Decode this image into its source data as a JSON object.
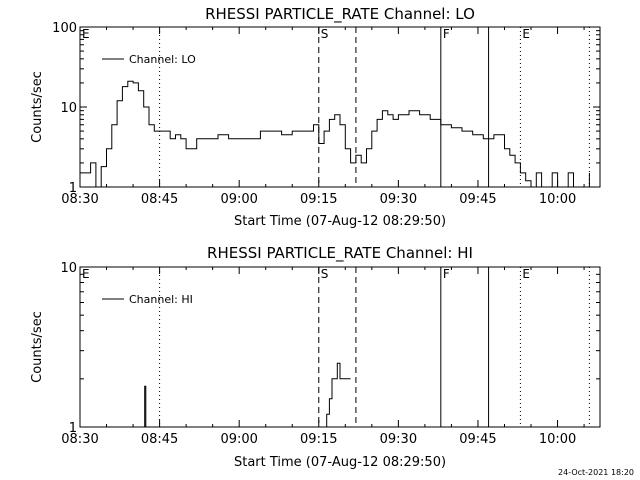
{
  "footer": {
    "timestamp": "24-Oct-2021 18:20"
  },
  "chart_data": [
    {
      "type": "line",
      "title": "RHESSI PARTICLE_RATE Channel: LO",
      "xlabel": "Start Time (07-Aug-12 08:29:50)",
      "ylabel": "Counts/sec",
      "y_scale": "log",
      "ylim": [
        1,
        100
      ],
      "xlim": [
        "08:30",
        "10:08"
      ],
      "x_ticks": [
        "08:30",
        "08:45",
        "09:00",
        "09:15",
        "09:30",
        "09:45",
        "10:00"
      ],
      "y_ticks": [
        "1",
        "10",
        "100"
      ],
      "grid": false,
      "legend": {
        "position": "top-left",
        "entries": [
          "Channel: LO"
        ]
      },
      "series": [
        {
          "name": "Channel: LO",
          "x": [
            "08:30",
            "08:32",
            "08:33",
            "08:34",
            "08:35",
            "08:36",
            "08:37",
            "08:38",
            "08:39",
            "08:40",
            "08:41",
            "08:42",
            "08:43",
            "08:44",
            "08:45",
            "08:46",
            "08:47",
            "08:48",
            "08:49",
            "08:50",
            "08:52",
            "08:54",
            "08:56",
            "08:58",
            "09:00",
            "09:02",
            "09:04",
            "09:06",
            "09:08",
            "09:10",
            "09:12",
            "09:14",
            "09:15",
            "09:16",
            "09:17",
            "09:18",
            "09:19",
            "09:20",
            "09:21",
            "09:22",
            "09:23",
            "09:24",
            "09:25",
            "09:26",
            "09:27",
            "09:28",
            "09:29",
            "09:30",
            "09:32",
            "09:34",
            "09:36",
            "09:38",
            "09:40",
            "09:42",
            "09:44",
            "09:46",
            "09:48",
            "09:50",
            "09:51",
            "09:52",
            "09:53",
            "09:54",
            "09:55",
            "09:56",
            "09:57",
            "09:58",
            "09:59",
            "10:00",
            "10:01",
            "10:02",
            "10:03",
            "10:04",
            "10:05",
            "10:06"
          ],
          "values": [
            1.5,
            2,
            1,
            1.8,
            3,
            6,
            12,
            18,
            21,
            20,
            16,
            10,
            6,
            5,
            5,
            5,
            4,
            4.5,
            4,
            3,
            4,
            4,
            4.5,
            4,
            4,
            4,
            5,
            5,
            4.5,
            5,
            5,
            6,
            3.5,
            5,
            7,
            8,
            6,
            3,
            2,
            2.5,
            2,
            3,
            5,
            7,
            9,
            8,
            7,
            8,
            9,
            8,
            7,
            6,
            5.5,
            5,
            4.5,
            4,
            4.5,
            3,
            2.5,
            2,
            1.5,
            1.2,
            1,
            1.5,
            1,
            1,
            1.5,
            1,
            1,
            1.5,
            1,
            1,
            1,
            1.5
          ]
        }
      ],
      "event_markers": [
        {
          "label": "E",
          "time": "08:30",
          "style": "none"
        },
        {
          "label": "",
          "time": "08:45",
          "style": "dotted"
        },
        {
          "label": "S",
          "time": "09:15",
          "style": "dashed"
        },
        {
          "label": "",
          "time": "09:22",
          "style": "dashed"
        },
        {
          "label": "F",
          "time": "09:38",
          "style": "solid"
        },
        {
          "label": "",
          "time": "09:47",
          "style": "solid"
        },
        {
          "label": "E",
          "time": "09:53",
          "style": "dotted"
        },
        {
          "label": "",
          "time": "10:06",
          "style": "dotted"
        }
      ]
    },
    {
      "type": "line",
      "title": "RHESSI PARTICLE_RATE Channel: HI",
      "xlabel": "Start Time (07-Aug-12 08:29:50)",
      "ylabel": "Counts/sec",
      "y_scale": "log",
      "ylim": [
        1,
        10
      ],
      "xlim": [
        "08:30",
        "10:08"
      ],
      "x_ticks": [
        "08:30",
        "08:45",
        "09:00",
        "09:15",
        "09:30",
        "09:45",
        "10:00"
      ],
      "y_ticks": [
        "1",
        "10"
      ],
      "grid": false,
      "legend": {
        "position": "top-left",
        "entries": [
          "Channel: HI"
        ]
      },
      "series": [
        {
          "name": "Channel: HI",
          "x": [
            "08:42.0",
            "08:42.2",
            "08:42.4",
            "08:42.6",
            "08:42.8",
            "09:16.0",
            "09:16.5",
            "09:17.0",
            "09:17.5",
            "09:18.0",
            "09:18.5",
            "09:19.0",
            "09:19.5",
            "09:20.0",
            "09:21.0"
          ],
          "values": [
            1,
            1.8,
            1,
            1,
            1,
            1,
            1.2,
            1.5,
            2,
            2,
            2.5,
            2,
            2,
            2,
            2
          ]
        }
      ],
      "event_markers": [
        {
          "label": "E",
          "time": "08:30",
          "style": "none"
        },
        {
          "label": "",
          "time": "08:45",
          "style": "dotted"
        },
        {
          "label": "S",
          "time": "09:15",
          "style": "dashed"
        },
        {
          "label": "",
          "time": "09:22",
          "style": "dashed"
        },
        {
          "label": "F",
          "time": "09:38",
          "style": "solid"
        },
        {
          "label": "",
          "time": "09:47",
          "style": "solid"
        },
        {
          "label": "E",
          "time": "09:53",
          "style": "dotted"
        },
        {
          "label": "",
          "time": "10:06",
          "style": "dotted"
        }
      ]
    }
  ]
}
